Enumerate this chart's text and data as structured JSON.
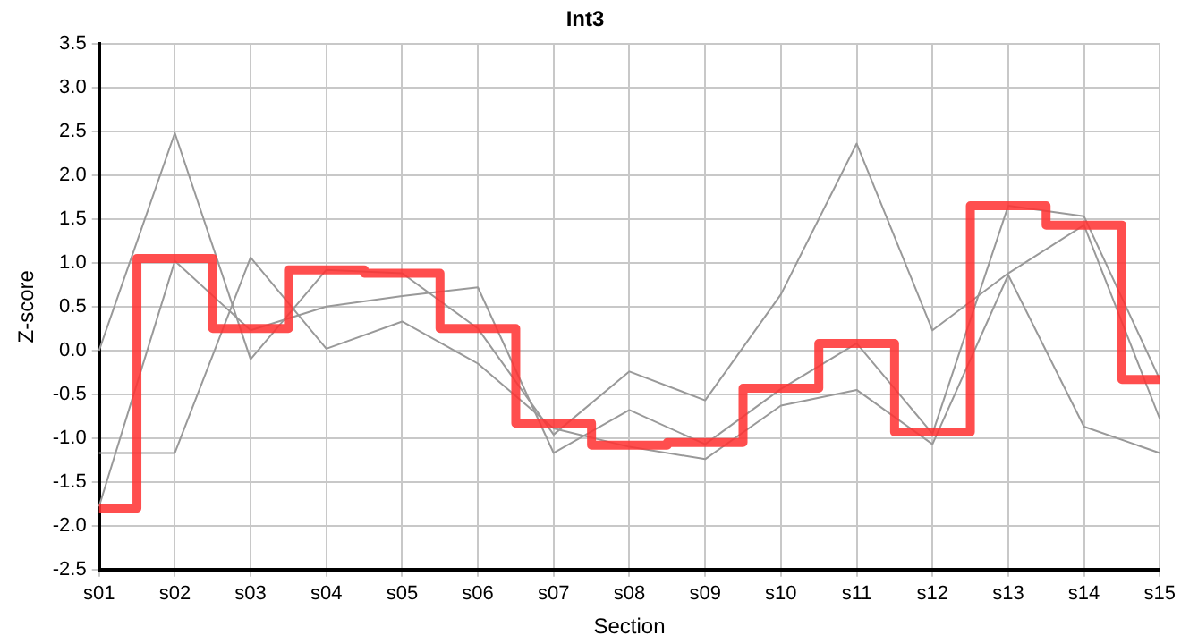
{
  "chart_data": {
    "type": "line",
    "title": "Int3",
    "xlabel": "Section",
    "ylabel": "Z-score",
    "categories": [
      "s01",
      "s02",
      "s03",
      "s04",
      "s05",
      "s06",
      "s07",
      "s08",
      "s09",
      "s10",
      "s11",
      "s12",
      "s13",
      "s14",
      "s15"
    ],
    "series": [
      {
        "color": "#999999",
        "values": [
          0,
          2.48,
          -0.1,
          0.92,
          0.88,
          0.25,
          -0.96,
          -0.24,
          -0.57,
          0.64,
          2.36,
          0.23,
          0.88,
          1.43,
          -0.78
        ]
      },
      {
        "color": "#999999",
        "values": [
          -1.78,
          1.02,
          0.23,
          0.5,
          0.62,
          0.72,
          -1.17,
          -0.68,
          -1.07,
          -0.44,
          0.08,
          -0.95,
          1.65,
          1.53,
          -0.33
        ]
      },
      {
        "color": "#999999",
        "values": [
          -1.17,
          -1.17,
          1.06,
          0.02,
          0.33,
          -0.15,
          -0.89,
          -1.1,
          -1.24,
          -0.63,
          -0.45,
          -1.07,
          0.86,
          -0.87,
          -1.17
        ]
      },
      {
        "type": "step",
        "color": "#ff3333",
        "values": [
          -1.8,
          1.05,
          0.25,
          0.92,
          0.88,
          0.25,
          -0.83,
          -1.08,
          -1.05,
          -0.43,
          0.08,
          -0.93,
          1.65,
          1.43,
          -0.33
        ]
      }
    ],
    "ylim": [
      -2.5,
      3.5
    ],
    "yticks": [
      {
        "value": -2.5,
        "label": "-2.5"
      },
      {
        "value": -2,
        "label": "-2.0"
      },
      {
        "value": -1.5,
        "label": "-1.5"
      },
      {
        "value": -1,
        "label": "-1.0"
      },
      {
        "value": -0.5,
        "label": "-0.5"
      },
      {
        "value": 0,
        "label": "0.0"
      },
      {
        "value": 0.5,
        "label": "0.5"
      },
      {
        "value": 1,
        "label": "1.0"
      },
      {
        "value": 1.5,
        "label": "1.5"
      },
      {
        "value": 2,
        "label": "2.0"
      },
      {
        "value": 2.5,
        "label": "2.5"
      },
      {
        "value": 3,
        "label": "3.0"
      },
      {
        "value": 3.5,
        "label": "3.5"
      }
    ],
    "grid": true,
    "legend": false,
    "marker": "none",
    "line_style": "solid"
  }
}
